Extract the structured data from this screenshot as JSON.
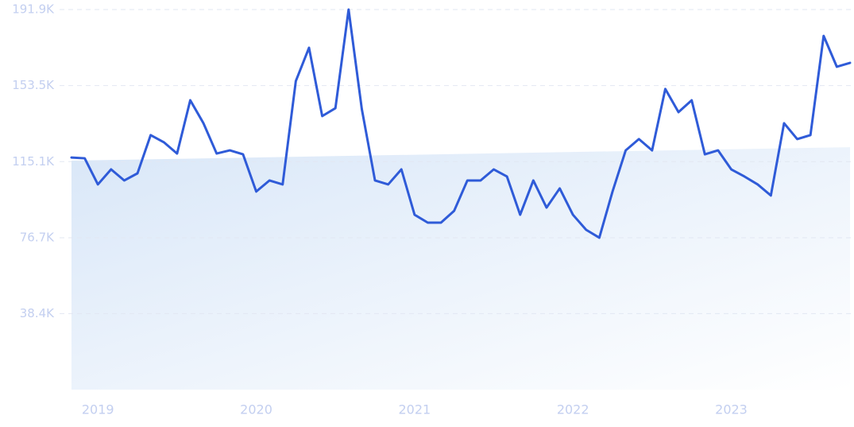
{
  "chart_data": {
    "type": "line",
    "categories": [
      null,
      null,
      "2019",
      null,
      null,
      null,
      null,
      null,
      null,
      null,
      null,
      null,
      null,
      null,
      "2020",
      null,
      null,
      null,
      null,
      null,
      null,
      null,
      null,
      null,
      null,
      null,
      "2021",
      null,
      null,
      null,
      null,
      null,
      null,
      null,
      null,
      null,
      null,
      null,
      "2022",
      null,
      null,
      null,
      null,
      null,
      null,
      null,
      null,
      null,
      null,
      null,
      "2023",
      null,
      null,
      null,
      null,
      null,
      null,
      null,
      null,
      null
    ],
    "series": [
      {
        "color": "#2f5bd8",
        "values": [
          117200,
          116800,
          103600,
          111200,
          105600,
          109200,
          128500,
          124900,
          119200,
          146100,
          134500,
          119200,
          120800,
          118800,
          100000,
          105600,
          103600,
          155800,
          172600,
          138100,
          142100,
          191900,
          141700,
          105600,
          103600,
          111200,
          88300,
          84300,
          84300,
          90300,
          105600,
          105600,
          111200,
          107600,
          88300,
          105600,
          91900,
          101600,
          88300,
          80700,
          76700,
          100000,
          120800,
          126500,
          120800,
          151800,
          140100,
          146100,
          118800,
          120800,
          111200,
          107600,
          103600,
          98000,
          134500,
          126500,
          128500,
          178600,
          163000,
          165000
        ]
      }
    ],
    "trend": [
      115600,
      122400
    ],
    "ylim": [
      0,
      191900
    ],
    "yticks": [
      {
        "value": 38400,
        "label": "38.4K"
      },
      {
        "value": 76700,
        "label": "76.7K"
      },
      {
        "value": 115100,
        "label": "115.1K"
      },
      {
        "value": 153500,
        "label": "153.5K"
      },
      {
        "value": 191900,
        "label": "191.9K"
      }
    ],
    "grid": true
  }
}
